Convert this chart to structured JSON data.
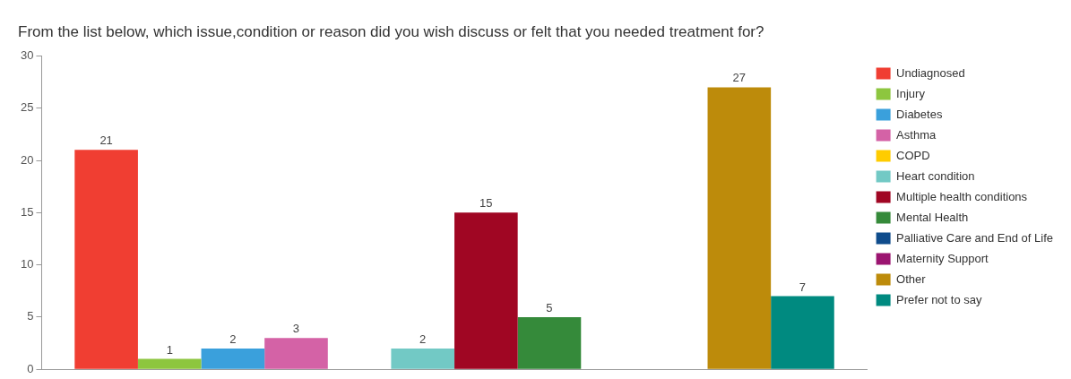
{
  "chart_data": {
    "type": "bar",
    "title": "From the list below, which issue,condition or reason did you wish discuss or felt that you needed treatment for?",
    "categories": [
      null
    ],
    "series": [
      {
        "name": "Undiagnosed",
        "color": "#f03e32",
        "values": [
          21
        ],
        "value_labels": [
          "21"
        ]
      },
      {
        "name": "Injury",
        "color": "#8dc63f",
        "values": [
          1
        ],
        "value_labels": [
          "1"
        ]
      },
      {
        "name": "Diabetes",
        "color": "#3aa0dc",
        "values": [
          2
        ],
        "value_labels": [
          "2"
        ]
      },
      {
        "name": "Asthma",
        "color": "#d462a6",
        "values": [
          3
        ],
        "value_labels": [
          "3"
        ]
      },
      {
        "name": "COPD",
        "color": "#ffcc00",
        "values": [
          0
        ],
        "value_labels": [
          null
        ]
      },
      {
        "name": "Heart condition",
        "color": "#72c9c5",
        "values": [
          2
        ],
        "value_labels": [
          "2"
        ]
      },
      {
        "name": "Multiple health conditions",
        "color": "#a00623",
        "values": [
          15
        ],
        "value_labels": [
          "15"
        ]
      },
      {
        "name": "Mental Health",
        "color": "#358a3a",
        "values": [
          5
        ],
        "value_labels": [
          "5"
        ]
      },
      {
        "name": "Palliative Care and End of Life",
        "color": "#0f4c8c",
        "values": [
          0
        ],
        "value_labels": [
          null
        ]
      },
      {
        "name": "Maternity Support",
        "color": "#9b1470",
        "values": [
          0
        ],
        "value_labels": [
          null
        ]
      },
      {
        "name": "Other",
        "color": "#bd8b0b",
        "values": [
          27
        ],
        "value_labels": [
          "27"
        ]
      },
      {
        "name": "Prefer not to say",
        "color": "#008a80",
        "values": [
          7
        ],
        "value_labels": [
          "7"
        ]
      }
    ],
    "ylim": [
      0,
      30
    ],
    "yticks": [
      0,
      5,
      10,
      15,
      20,
      25,
      30
    ],
    "grid": false,
    "legend": "right"
  }
}
